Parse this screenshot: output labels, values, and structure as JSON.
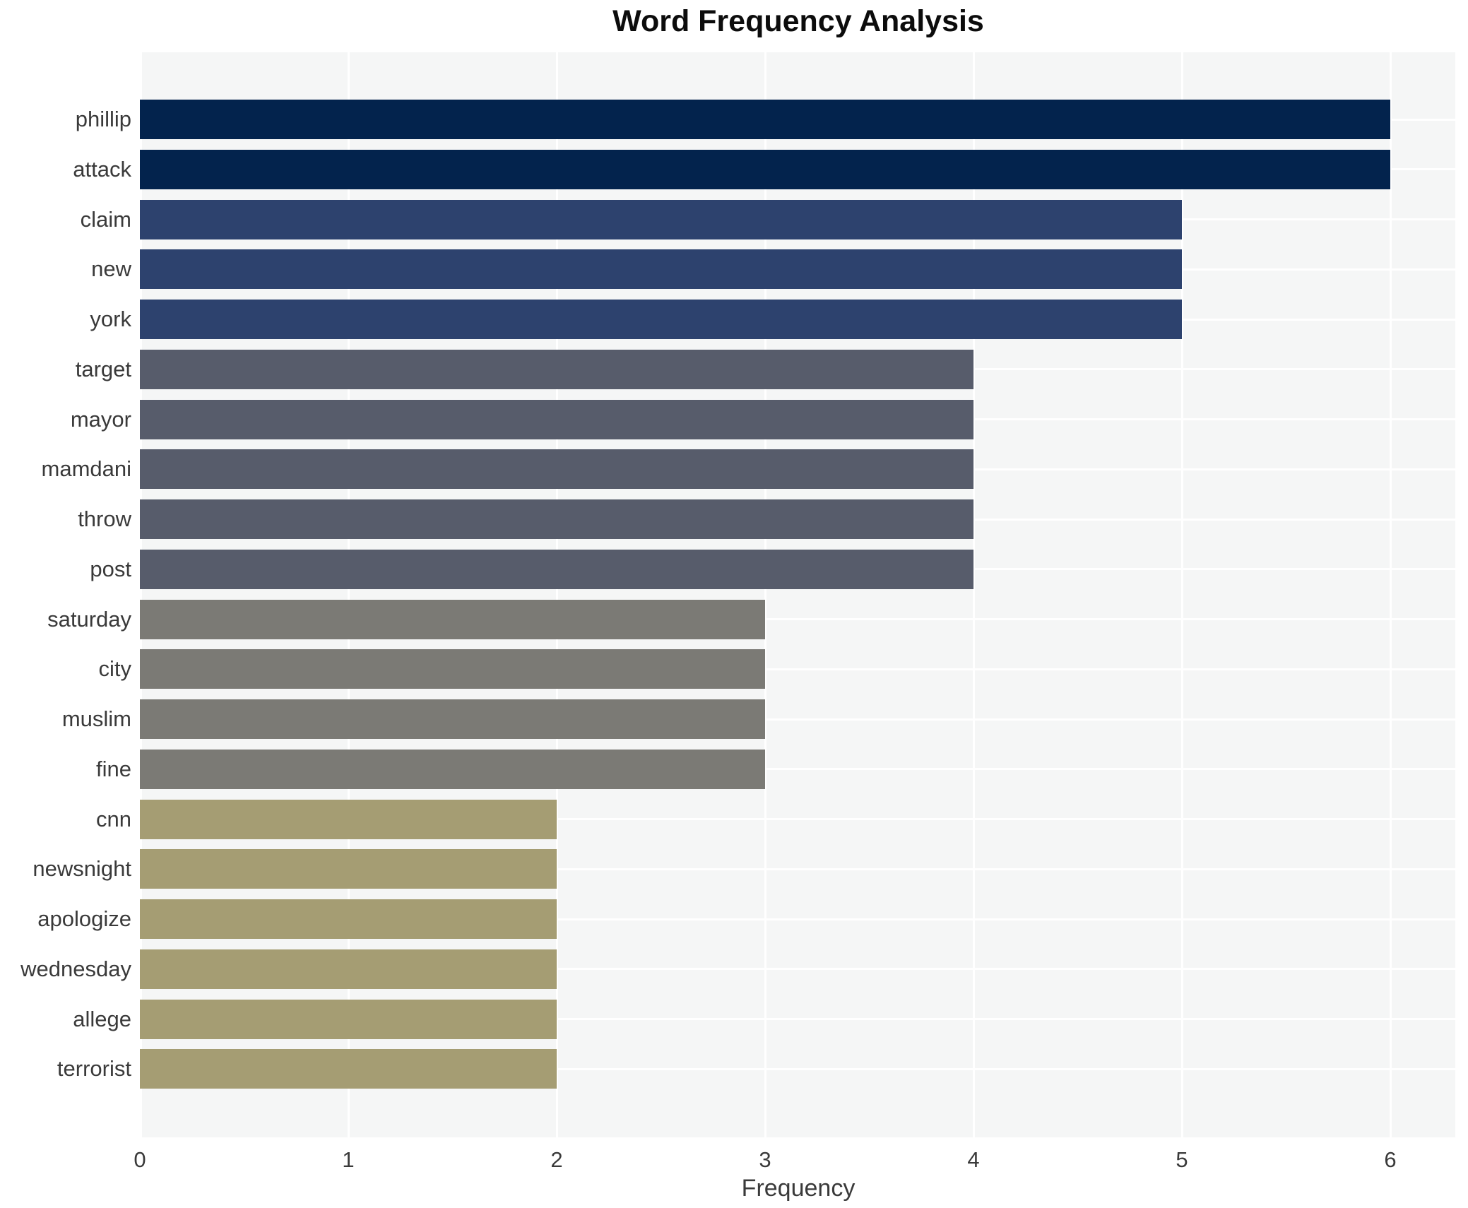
{
  "title": "Word Frequency Analysis",
  "axis": {
    "xlabel": "Frequency",
    "x_tick_labels": [
      "0",
      "1",
      "2",
      "3",
      "4",
      "5",
      "6"
    ]
  },
  "colors": {
    "plot_background": "#f5f6f6",
    "gridline": "#ffffff",
    "text": "#3a3a3a",
    "bar_value_6": "#03234d",
    "bar_value_5": "#2d426e",
    "bar_value_4": "#575c6b",
    "bar_value_3": "#7b7a75",
    "bar_value_2": "#a59d73"
  },
  "chart_data": {
    "type": "bar",
    "orientation": "horizontal",
    "title": "Word Frequency Analysis",
    "xlabel": "Frequency",
    "ylabel": "",
    "categories": [
      "phillip",
      "attack",
      "claim",
      "new",
      "york",
      "target",
      "mayor",
      "mamdani",
      "throw",
      "post",
      "saturday",
      "city",
      "muslim",
      "fine",
      "cnn",
      "newsnight",
      "apologize",
      "wednesday",
      "allege",
      "terrorist"
    ],
    "values": [
      6,
      6,
      5,
      5,
      5,
      4,
      4,
      4,
      4,
      4,
      3,
      3,
      3,
      3,
      2,
      2,
      2,
      2,
      2,
      2
    ],
    "x_ticks": [
      0,
      1,
      2,
      3,
      4,
      5,
      6
    ],
    "xlim": [
      0,
      6.31
    ],
    "grid": true,
    "legend_position": "none",
    "colors_by_value": {
      "6": "#03234d",
      "5": "#2d426e",
      "4": "#575c6b",
      "3": "#7b7a75",
      "2": "#a59d73"
    }
  }
}
